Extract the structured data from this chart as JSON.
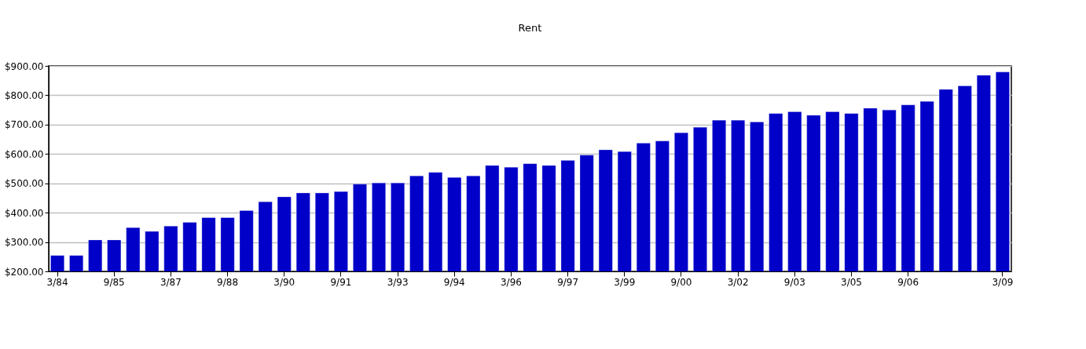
{
  "chart_data": {
    "type": "bar",
    "title": "Rent",
    "categories": [
      "3/84",
      null,
      null,
      "9/85",
      null,
      null,
      "3/87",
      null,
      null,
      "9/88",
      null,
      null,
      "3/90",
      null,
      null,
      "9/91",
      null,
      null,
      "3/93",
      null,
      null,
      "9/94",
      null,
      null,
      "3/96",
      null,
      null,
      "9/97",
      null,
      null,
      "3/99",
      null,
      null,
      "9/00",
      null,
      null,
      "3/02",
      null,
      null,
      "9/03",
      null,
      null,
      "3/05",
      null,
      null,
      "9/06",
      null,
      null,
      null,
      null,
      "3/09"
    ],
    "values": [
      254,
      254,
      307,
      307,
      349,
      336,
      354,
      367,
      383,
      383,
      407,
      437,
      454,
      467,
      467,
      472,
      497,
      501,
      501,
      525,
      537,
      520,
      525,
      561,
      555,
      567,
      561,
      578,
      596,
      614,
      608,
      637,
      644,
      672,
      691,
      715,
      715,
      709,
      738,
      744,
      732,
      744,
      738,
      756,
      750,
      767,
      779,
      820,
      832,
      868,
      879
    ],
    "color": "#0000c8",
    "ylim": [
      200,
      900
    ],
    "yticks": [
      {
        "value": 200,
        "label": "$200.00"
      },
      {
        "value": 300,
        "label": "$300.00"
      },
      {
        "value": 400,
        "label": "$400.00"
      },
      {
        "value": 500,
        "label": "$500.00"
      },
      {
        "value": 600,
        "label": "$600.00"
      },
      {
        "value": 700,
        "label": "$700.00"
      },
      {
        "value": 800,
        "label": "$800.00"
      },
      {
        "value": 900,
        "label": "$900.00"
      }
    ],
    "grid": "y"
  }
}
